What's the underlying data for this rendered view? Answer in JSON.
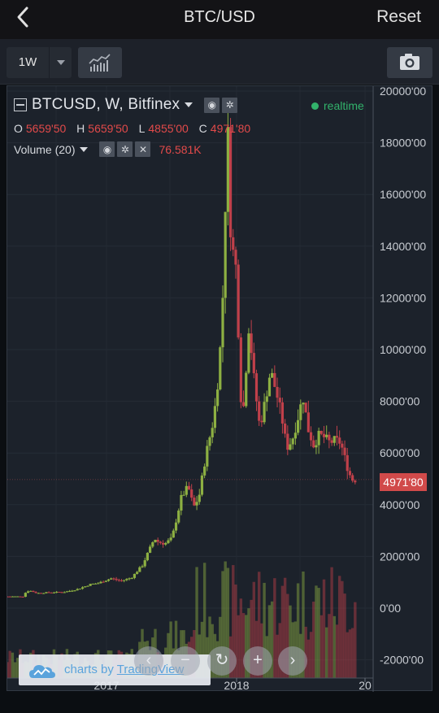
{
  "navbar": {
    "title": "BTC/USD",
    "reset_label": "Reset"
  },
  "toolbar": {
    "interval_label": "1W"
  },
  "legend": {
    "symbol_title": "BTCUSD, W, Bitfinex",
    "status": "realtime",
    "open_label": "O",
    "open_value": "5659'50",
    "high_label": "H",
    "high_value": "5659'50",
    "low_label": "L",
    "low_value": "4855'00",
    "close_label": "C",
    "close_value": "4971'80",
    "volume_label": "Volume (20)",
    "volume_value": "76.581K"
  },
  "last_price_tag": "4971'80",
  "branding": {
    "text_prefix": "charts by ",
    "text_link": "TradingView"
  },
  "colors": {
    "up": "#8db042",
    "down": "#c0404a",
    "accent": "#32b26b",
    "background": "#1c222b"
  },
  "chart_data": {
    "type": "candlestick",
    "symbol": "BTCUSD",
    "interval": "W",
    "y_axis_ticks": [
      "20000'00",
      "18000'00",
      "16000'00",
      "14000'00",
      "12000'00",
      "10000'00",
      "8000'00",
      "6000'00",
      "4000'00",
      "2000'00",
      "0'00",
      "-2000'00"
    ],
    "y_tick_values": [
      20000,
      18000,
      16000,
      14000,
      12000,
      10000,
      8000,
      6000,
      4000,
      2000,
      0,
      -2000
    ],
    "x_axis_ticks": [
      "2017",
      "2018",
      "20"
    ],
    "ylim": [
      -3000,
      20300
    ],
    "close_series": {
      "t": [
        2016.33,
        2016.45,
        2016.47,
        2016.5,
        2016.55,
        2016.65,
        2016.75,
        2016.85,
        2016.95,
        2017.0,
        2017.1,
        2017.17,
        2017.25,
        2017.33,
        2017.42,
        2017.45,
        2017.5,
        2017.55,
        2017.62,
        2017.67,
        2017.71,
        2017.75,
        2017.8,
        2017.85,
        2017.88,
        2017.92,
        2017.95,
        2017.96,
        2017.98,
        2018.0,
        2018.02,
        2018.04,
        2018.06,
        2018.08,
        2018.12,
        2018.16,
        2018.2,
        2018.24,
        2018.28,
        2018.32,
        2018.36,
        2018.4,
        2018.44,
        2018.48,
        2018.52,
        2018.56,
        2018.6,
        2018.64,
        2018.68,
        2018.72,
        2018.76,
        2018.8,
        2018.84,
        2018.88
      ],
      "close": [
        450,
        450,
        650,
        670,
        580,
        610,
        620,
        730,
        930,
        960,
        1150,
        1050,
        1180,
        1650,
        2700,
        2550,
        2500,
        2700,
        4300,
        4700,
        3900,
        4300,
        5900,
        7100,
        8200,
        10900,
        16500,
        19200,
        15000,
        13800,
        13500,
        11000,
        8200,
        7800,
        11000,
        8700,
        7000,
        8000,
        9200,
        8400,
        7500,
        6200,
        6500,
        7300,
        8200,
        6900,
        6300,
        6700,
        6600,
        6400,
        6500,
        6400,
        5600,
        4972
      ]
    },
    "volume_description": "weekly volume bars overlaid at chart bottom; last value 76.581K"
  }
}
